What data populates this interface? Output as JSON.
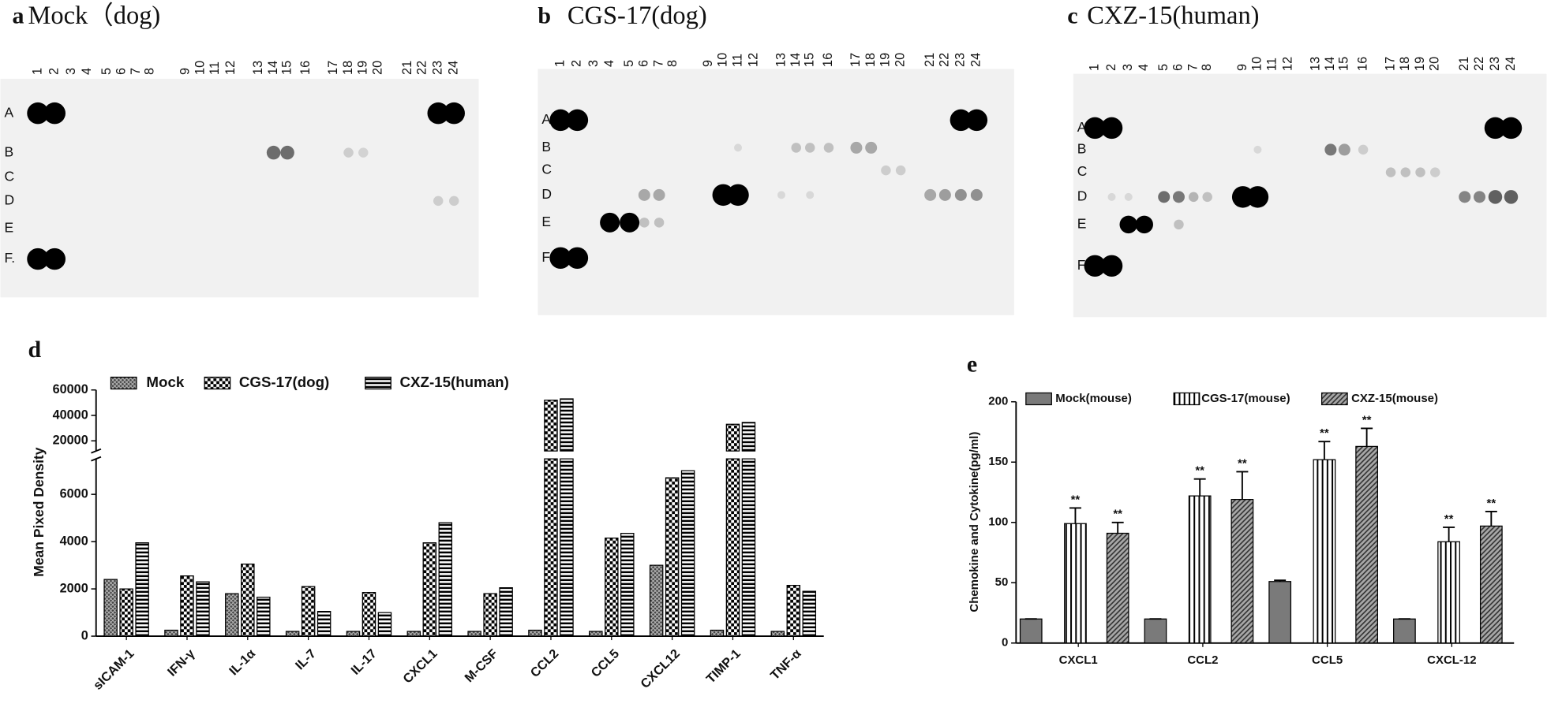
{
  "blots": [
    {
      "label": "a",
      "title": "Mock（dog)",
      "columns": [
        "1",
        "2",
        "3",
        "4",
        "5",
        "6",
        "7",
        "8",
        "9",
        "10",
        "11",
        "12",
        "13",
        "14",
        "15",
        "16",
        "17",
        "18",
        "19",
        "20",
        "21",
        "22",
        "23",
        "24"
      ],
      "rows": [
        "A",
        "B",
        "C",
        "D",
        "E",
        "F."
      ]
    },
    {
      "label": "b",
      "title": "CGS-17(dog)",
      "columns": [
        "1",
        "2",
        "3",
        "4",
        "5",
        "6",
        "7",
        "8",
        "9",
        "10",
        "11",
        "12",
        "13",
        "14",
        "15",
        "16",
        "17",
        "18",
        "19",
        "20",
        "21",
        "22",
        "23",
        "24"
      ],
      "rows": [
        "A",
        "B",
        "C",
        "D",
        "E",
        "F"
      ]
    },
    {
      "label": "c",
      "title": "CXZ-15(human)",
      "columns": [
        "1",
        "2",
        "3",
        "4",
        "5",
        "6",
        "7",
        "8",
        "9",
        "10",
        "11",
        "12",
        "13",
        "14",
        "15",
        "16",
        "17",
        "18",
        "19",
        "20",
        "21",
        "22",
        "23",
        "24"
      ],
      "rows": [
        "A",
        "B",
        "C",
        "D",
        "E",
        "F."
      ]
    }
  ],
  "chart_data": [
    {
      "type": "bar",
      "panel": "d",
      "ylabel": "Mean Pixed Density",
      "categories": [
        "sICAM-1",
        "IFN-γ",
        "IL-1α",
        "IL-7",
        "IL-17",
        "CXCL1",
        "M-CSF",
        "CCL2",
        "CCL5",
        "CXCL12",
        "TIMP-1",
        "TNF-α"
      ],
      "series": [
        {
          "name": "Mock",
          "pattern": "crosshatch",
          "values": [
            2400,
            250,
            1800,
            200,
            200,
            200,
            200,
            250,
            200,
            3000,
            250,
            200
          ]
        },
        {
          "name": "CGS-17(dog)",
          "pattern": "checker",
          "values": [
            2000,
            2550,
            3050,
            2100,
            1850,
            3950,
            1800,
            52000,
            4150,
            6700,
            33000,
            2150
          ]
        },
        {
          "name": "CXZ-15(human)",
          "pattern": "hstripes",
          "values": [
            3950,
            2300,
            1650,
            1050,
            1000,
            4800,
            2050,
            53000,
            4350,
            7000,
            34500,
            1900
          ]
        }
      ],
      "ylim": [
        0,
        7500
      ],
      "yticks": [
        0,
        2000,
        4000,
        6000
      ],
      "ylim_upper": [
        12000,
        60000
      ],
      "yticks_upper": [
        20000,
        40000,
        60000
      ],
      "axis_break": true
    },
    {
      "type": "bar",
      "panel": "e",
      "ylabel": "Chemokine and Cytokine(pg/ml)",
      "categories": [
        "CXCL1",
        "CCL2",
        "CCL5",
        "CXCL-12"
      ],
      "series": [
        {
          "name": "Mock(mouse)",
          "color": "#7a7a7a",
          "values": [
            20,
            20,
            51,
            20
          ],
          "errors": [
            0,
            0,
            1,
            0
          ]
        },
        {
          "name": "CGS-17(mouse)",
          "pattern": "vstripes",
          "values": [
            99,
            122,
            152,
            84
          ],
          "errors": [
            13,
            14,
            15,
            12
          ],
          "significance": [
            "**",
            "**",
            "**",
            "**"
          ]
        },
        {
          "name": "CXZ-15(mouse)",
          "pattern": "diag",
          "values": [
            91,
            119,
            163,
            97
          ],
          "errors": [
            9,
            23,
            15,
            12
          ],
          "significance": [
            "**",
            "**",
            "**",
            "**"
          ]
        }
      ],
      "ylim": [
        0,
        200
      ],
      "yticks": [
        0,
        50,
        100,
        150,
        200
      ]
    }
  ]
}
